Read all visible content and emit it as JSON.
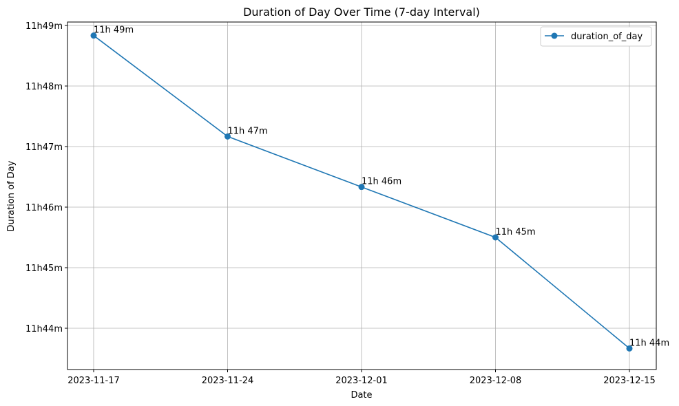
{
  "chart_data": {
    "type": "line",
    "title": "Duration of Day Over Time (7-day Interval)",
    "xlabel": "Date",
    "ylabel": "Duration of Day",
    "x": [
      "2023-11-17",
      "2023-11-24",
      "2023-12-01",
      "2023-12-08",
      "2023-12-15"
    ],
    "x_ticks": [
      "2023-11-17",
      "2023-11-24",
      "2023-12-01",
      "2023-12-08",
      "2023-12-15"
    ],
    "y_ticks": [
      {
        "value": "11:44",
        "label": "11h44m"
      },
      {
        "value": "11:45",
        "label": "11h45m"
      },
      {
        "value": "11:46",
        "label": "11h46m"
      },
      {
        "value": "11:47",
        "label": "11h47m"
      },
      {
        "value": "11:48",
        "label": "11h48m"
      },
      {
        "value": "11:49",
        "label": "11h49m"
      }
    ],
    "series": [
      {
        "name": "duration_of_day",
        "color": "#1f77b4",
        "values": [
          "11:48:50",
          "11:47:10",
          "11:46:20",
          "11:45:30",
          "11:43:40"
        ],
        "labels": [
          "11h 49m",
          "11h 47m",
          "11h 46m",
          "11h 45m",
          "11h 44m"
        ]
      }
    ],
    "grid": true,
    "legend": "top-right"
  }
}
